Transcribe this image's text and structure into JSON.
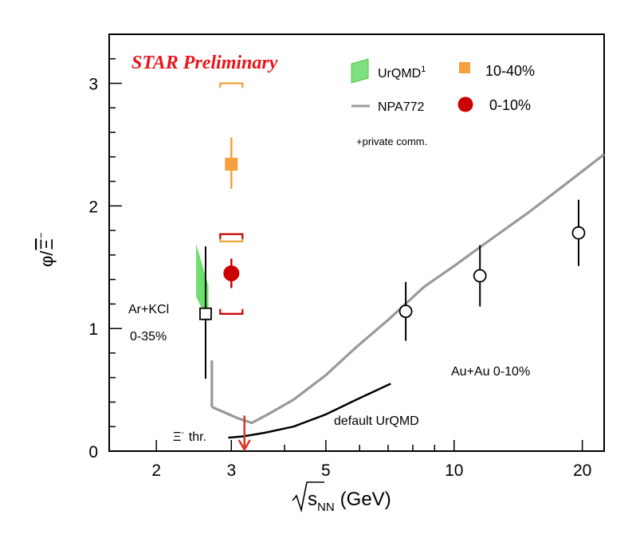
{
  "chart_data": {
    "type": "scatter",
    "title": "STAR Preliminary",
    "xscale": "log",
    "xlim": [
      1.55,
      22.5
    ],
    "ylim": [
      0,
      3.4
    ],
    "xticks": [
      2,
      3,
      5,
      10,
      20
    ],
    "xtick_labels": [
      "2",
      "3",
      "5",
      "10",
      "20"
    ],
    "yticks": [
      0,
      1,
      2,
      3
    ],
    "ytick_labels": [
      "0",
      "1",
      "2",
      "3"
    ],
    "xlabel": {
      "main": "s",
      "sub": "NN",
      "unit": "(GeV)"
    },
    "ylabel": {
      "main": "φ/",
      "sym": "Ξ",
      "sup": "−"
    },
    "series": [
      {
        "name": "10-40%",
        "marker": "square",
        "color": "#f5a03c",
        "points": [
          {
            "x": 3.0,
            "y": 2.34,
            "stat_lo": 2.14,
            "stat_hi": 2.56,
            "sys_lo": 1.71,
            "sys_hi": 3.0
          }
        ]
      },
      {
        "name": "0-10%",
        "marker": "circle",
        "color": "#cc0000",
        "points": [
          {
            "x": 3.0,
            "y": 1.45,
            "stat_lo": 1.33,
            "stat_hi": 1.57,
            "sys_lo": 1.12,
            "sys_hi": 1.77
          }
        ]
      },
      {
        "name": "Au+Au 0-10%",
        "marker": "open-circle",
        "color": "#000000",
        "points": [
          {
            "x": 7.7,
            "y": 1.14,
            "lo": 0.9,
            "hi": 1.38
          },
          {
            "x": 11.5,
            "y": 1.43,
            "lo": 1.18,
            "hi": 1.68
          },
          {
            "x": 19.6,
            "y": 1.78,
            "lo": 1.51,
            "hi": 2.05
          }
        ]
      },
      {
        "name": "Ar+KCl 0-35%",
        "marker": "open-square",
        "color": "#000000",
        "points": [
          {
            "x": 2.61,
            "y": 1.12,
            "lo": 0.59,
            "hi": 1.67
          }
        ]
      },
      {
        "name": "NPA772",
        "type": "line",
        "color": "#999999",
        "x": [
          2.7,
          3.1,
          3.35,
          3.7,
          4.2,
          5.0,
          5.9,
          7.0,
          8.5,
          10.0,
          12.0,
          15.0,
          18.0,
          22.5
        ],
        "y": [
          0.36,
          0.27,
          0.23,
          0.31,
          0.42,
          0.62,
          0.85,
          1.07,
          1.34,
          1.51,
          1.71,
          1.95,
          2.16,
          2.42
        ]
      },
      {
        "name": "NPA772 low-energy segment",
        "type": "line",
        "color": "#999999",
        "x": [
          2.7,
          2.7
        ],
        "y": [
          0.36,
          0.74
        ]
      },
      {
        "name": "default UrQMD",
        "type": "line",
        "color": "#000000",
        "x": [
          2.95,
          3.2,
          3.6,
          4.2,
          5.0,
          5.9,
          7.1
        ],
        "y": [
          0.11,
          0.12,
          0.15,
          0.2,
          0.3,
          0.42,
          0.55
        ]
      },
      {
        "name": "UrQMD",
        "type": "band",
        "color": "#66dd66",
        "polygon_x": [
          2.48,
          2.65,
          2.65,
          2.48
        ],
        "polygon_y": [
          1.69,
          1.35,
          1.05,
          1.26
        ]
      }
    ],
    "xi_threshold_arrow": {
      "x": 3.22,
      "y_from": 0.29,
      "y_to": 0.0,
      "color": "#e03020"
    },
    "legend": [
      {
        "label": "UrQMD",
        "sup": "1",
        "symbol": "green-band"
      },
      {
        "label": "10-40%",
        "symbol": "orange-square"
      },
      {
        "label": "NPA772",
        "symbol": "gray-line"
      },
      {
        "label": "0-10%",
        "symbol": "red-circle"
      }
    ],
    "legend_note": "+private comm.",
    "annotations": [
      {
        "text": "Ar+KCl"
      },
      {
        "text": "0-35%"
      },
      {
        "text": "Au+Au 0-10%"
      },
      {
        "text": "default UrQMD"
      },
      {
        "text": "Ξ",
        "sup": "-",
        "rest": "thr."
      }
    ]
  }
}
